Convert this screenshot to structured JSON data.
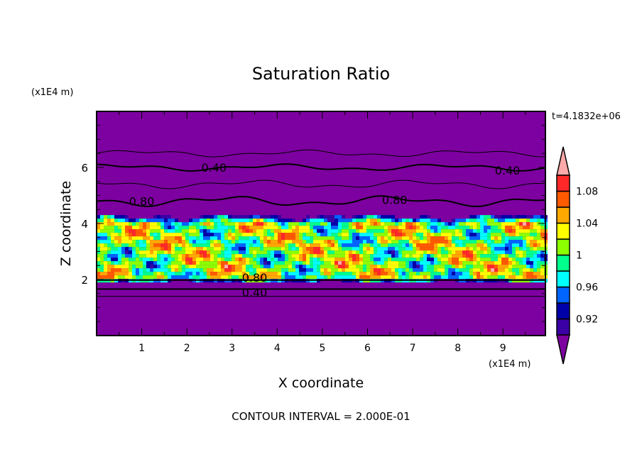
{
  "chart_data": {
    "type": "heatmap",
    "title": "Saturation Ratio",
    "xlabel": "X coordinate",
    "ylabel": "Z coordinate",
    "x_unit_label": "(x1E4 m)",
    "y_unit_label": "(x1E4 m)",
    "time_label": "t=4.1832e+06",
    "footer": "CONTOUR INTERVAL = 2.000E-01",
    "xlim": [
      0,
      9.94
    ],
    "ylim": [
      0,
      8
    ],
    "xticks": [
      "1",
      "2",
      "3",
      "4",
      "5",
      "6",
      "7",
      "8",
      "9"
    ],
    "yticks": [
      "2",
      "4",
      "6"
    ],
    "colorbar": {
      "levels": [
        0.9,
        0.92,
        0.94,
        0.96,
        0.98,
        1.0,
        1.02,
        1.04,
        1.06,
        1.08,
        1.1
      ],
      "tick_labels": [
        {
          "value": 0.92,
          "label": "0.92"
        },
        {
          "value": 0.96,
          "label": "0.96"
        },
        {
          "value": 1.0,
          "label": "1"
        },
        {
          "value": 1.04,
          "label": "1.04"
        },
        {
          "value": 1.08,
          "label": "1.08"
        }
      ],
      "colors": [
        "#3a00a4",
        "#0000a8",
        "#0064ff",
        "#00ffff",
        "#00ff8c",
        "#8cff00",
        "#ffff00",
        "#ffa800",
        "#ff5a00",
        "#ff2828"
      ],
      "under_color": "#7d00a0",
      "over_color": "#ffaaaa",
      "extend": "both"
    },
    "field_band_z": [
      2.0,
      4.3
    ],
    "contour_labels": [
      {
        "x": 2.6,
        "z": 6.0,
        "label": "0.40"
      },
      {
        "x": 9.1,
        "z": 5.9,
        "label": "0.40"
      },
      {
        "x": 1.0,
        "z": 4.8,
        "label": "0.80"
      },
      {
        "x": 6.6,
        "z": 4.85,
        "label": "0.80"
      },
      {
        "x": 3.5,
        "z": 1.95,
        "label": "0.80"
      },
      {
        "x": 3.5,
        "z": 1.66,
        "label": "0.40"
      }
    ],
    "contour_lines": [
      {
        "z": 6.5,
        "level": 0.2,
        "amp": 0.08
      },
      {
        "z": 6.0,
        "level": 0.4,
        "amp": 0.08
      },
      {
        "z": 5.4,
        "level": 0.6,
        "amp": 0.1
      },
      {
        "z": 4.8,
        "level": 0.8,
        "amp": 0.12
      },
      {
        "z": 1.98,
        "level": 0.8,
        "amp": 0.0
      },
      {
        "z": 1.66,
        "level": 0.4,
        "amp": 0.0
      },
      {
        "z": 1.4,
        "level": 0.2,
        "amp": 0.0
      }
    ]
  }
}
